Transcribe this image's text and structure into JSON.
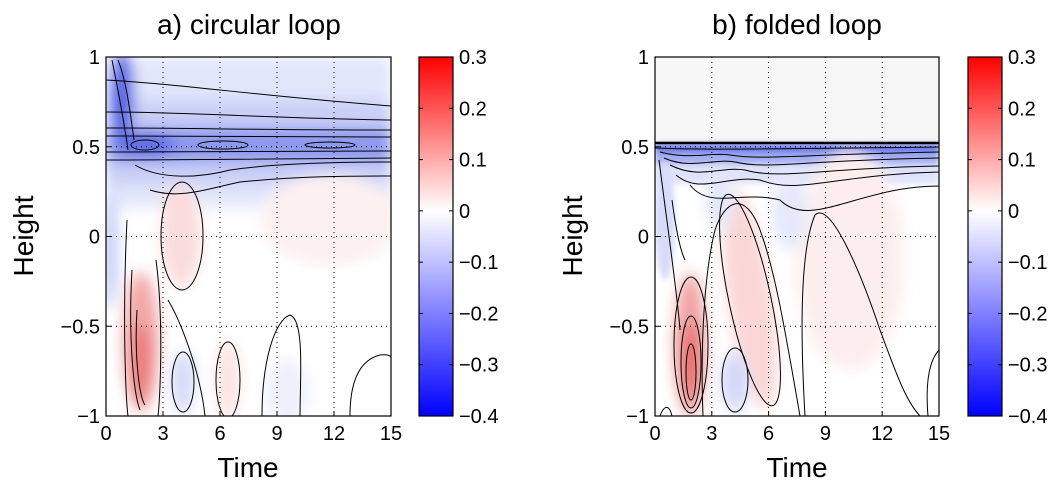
{
  "chart_data": [
    {
      "type": "heatmap",
      "title": "a) circular loop",
      "xlabel": "Time",
      "ylabel": "Height",
      "xlim": [
        0,
        15
      ],
      "ylim": [
        -1,
        1
      ],
      "xticks": [
        0,
        3,
        6,
        9,
        12,
        15
      ],
      "yticks": [
        -1,
        -0.5,
        0,
        0.5,
        1
      ],
      "xtick_labels": [
        "0",
        "3",
        "6",
        "9",
        "12",
        "15"
      ],
      "ytick_labels": [
        "−1",
        "−0.5",
        "0",
        "0.5",
        "1"
      ],
      "grid": true,
      "colorbar": {
        "range": [
          -0.4,
          0.3
        ],
        "ticks": [
          0.3,
          0.2,
          0.1,
          0,
          -0.1,
          -0.2,
          -0.3,
          -0.4
        ],
        "tick_labels": [
          "0.3",
          "0.2",
          "0.1",
          "0",
          "−0.1",
          "−0.2",
          "−0.3",
          "−0.4"
        ],
        "colormap": [
          "#0000ff",
          "#ffffff",
          "#ff0000"
        ]
      },
      "features": [
        {
          "kind": "negative_band",
          "y": 0.5,
          "note": "persistent blue layer centred at height 0.5"
        },
        {
          "kind": "positive_lobe",
          "x": 1.8,
          "y": -0.7,
          "peak": 0.3
        },
        {
          "kind": "positive_lobe",
          "x": 4.0,
          "y": 0.0,
          "peak": 0.1
        },
        {
          "kind": "negative_lobe",
          "x": 4.3,
          "y": -0.8,
          "peak": -0.1
        }
      ]
    },
    {
      "type": "heatmap",
      "title": "b) folded loop",
      "xlabel": "Time",
      "ylabel": "Height",
      "xlim": [
        0,
        15
      ],
      "ylim": [
        -1,
        1
      ],
      "xticks": [
        0,
        3,
        6,
        9,
        12,
        15
      ],
      "yticks": [
        -1,
        -0.5,
        0,
        0.5,
        1
      ],
      "xtick_labels": [
        "0",
        "3",
        "6",
        "9",
        "12",
        "15"
      ],
      "ytick_labels": [
        "−1",
        "−0.5",
        "0",
        "0.5",
        "1"
      ],
      "grid": true,
      "colorbar": {
        "range": [
          -0.4,
          0.3
        ],
        "ticks": [
          0.3,
          0.2,
          0.1,
          0,
          -0.1,
          -0.2,
          -0.3,
          -0.4
        ],
        "tick_labels": [
          "0.3",
          "0.2",
          "0.1",
          "0",
          "−0.1",
          "−0.2",
          "−0.3",
          "−0.4"
        ],
        "colormap": [
          "#0000ff",
          "#ffffff",
          "#ff0000"
        ]
      },
      "features": [
        {
          "kind": "no_data_region",
          "y_from": 0.53,
          "y_to": 1.0
        },
        {
          "kind": "negative_band",
          "y": 0.48,
          "note": "strong blue layer just below height 0.5"
        },
        {
          "kind": "positive_lobe",
          "x": 2.0,
          "y": -0.75,
          "peak": 0.3
        },
        {
          "kind": "positive_lobe",
          "x": 6.0,
          "y": -0.3,
          "peak": 0.15
        },
        {
          "kind": "negative_lobe",
          "x": 4.0,
          "y": -0.8,
          "peak": -0.1
        }
      ]
    }
  ],
  "colors": {
    "negative": "#0000ff",
    "zero": "#ffffff",
    "positive": "#ff0000",
    "masked": "#f8f8f8"
  }
}
